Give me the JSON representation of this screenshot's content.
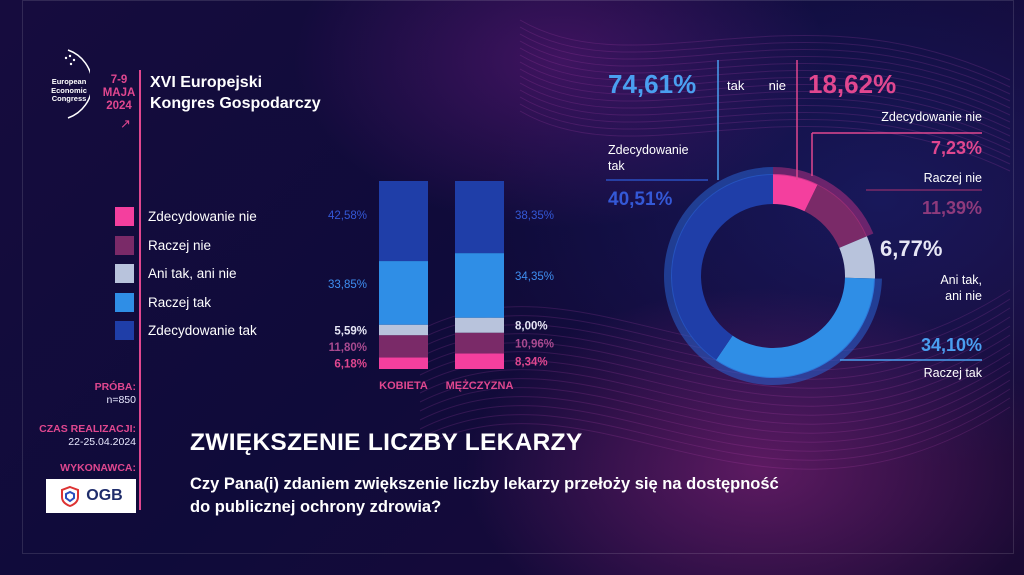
{
  "colors": {
    "zdec_nie": "#f43f9e",
    "raczej_nie": "#7a2a68",
    "ani": "#b8c3dc",
    "raczej_tak": "#2f8ee6",
    "zdec_tak": "#1f3ea8",
    "pink": "#e0478f",
    "blue_light": "#4a9ff0",
    "blue_dark": "#2a4fc0"
  },
  "header": {
    "logo_text": "European Economic Congress",
    "dates": "7-9 MAJA 2024",
    "dates_line1": "7-9",
    "dates_line2": "MAJA",
    "dates_line3": "2024",
    "title_line1": "XVI Europejski",
    "title_line2": "Kongres Gospodarczy"
  },
  "legend": [
    {
      "label": "Zdecydowanie nie",
      "color_key": "zdec_nie"
    },
    {
      "label": "Raczej nie",
      "color_key": "raczej_nie"
    },
    {
      "label": "Ani tak, ani nie",
      "color_key": "ani"
    },
    {
      "label": "Raczej tak",
      "color_key": "raczej_tak"
    },
    {
      "label": "Zdecydowanie tak",
      "color_key": "zdec_tak"
    }
  ],
  "sidebar": {
    "proba_label": "PRÓBA:",
    "proba_value": "n=850",
    "czas_label": "CZAS REALIZACJI:",
    "czas_value": "22-25.04.2024",
    "wykonawca_label": "WYKONAWCA:",
    "logo_text": "OGB"
  },
  "footer": {
    "title": "ZWIĘKSZENIE LICZBY LEKARZY",
    "question_line1": "Czy Pana(i) zdaniem zwiększenie liczby lekarzy przełoży się na dostępność",
    "question_line2": "do publicznej ochrony zdrowia?"
  },
  "chart_data": [
    {
      "type": "bar",
      "stacked": true,
      "categories": [
        "KOBIETA",
        "MĘŻCZYZNA"
      ],
      "series": [
        {
          "name": "Zdecydowanie nie",
          "values": [
            6.18,
            8.34
          ],
          "labels": [
            "6,18%",
            "8,34%"
          ]
        },
        {
          "name": "Raczej nie",
          "values": [
            11.8,
            10.96
          ],
          "labels": [
            "11,80%",
            "10,96%"
          ]
        },
        {
          "name": "Ani tak, ani nie",
          "values": [
            5.59,
            8.0
          ],
          "labels": [
            "5,59%",
            "8,00%"
          ]
        },
        {
          "name": "Raczej tak",
          "values": [
            33.85,
            34.35
          ],
          "labels": [
            "33,85%",
            "34,35%"
          ]
        },
        {
          "name": "Zdecydowanie tak",
          "values": [
            42.58,
            38.35
          ],
          "labels": [
            "42,58%",
            "38,35%"
          ]
        }
      ]
    },
    {
      "type": "pie",
      "donut": true,
      "slices": [
        {
          "name": "Zdecydowanie nie",
          "value": 7.23,
          "label": "7,23%"
        },
        {
          "name": "Raczej nie",
          "value": 11.39,
          "label": "11,39%"
        },
        {
          "name": "Ani tak, ani nie",
          "value": 6.77,
          "label": "6,77%"
        },
        {
          "name": "Raczej tak",
          "value": 34.1,
          "label": "34,10%"
        },
        {
          "name": "Zdecydowanie tak",
          "value": 40.51,
          "label": "40,51%"
        }
      ],
      "slice_labels": {
        "zdec_nie": "Zdecydowanie nie",
        "raczej_nie": "Raczej nie",
        "ani_line1": "Ani tak,",
        "ani_line2": "ani nie",
        "raczej_tak": "Raczej tak",
        "zdec_tak_line1": "Zdecydowanie",
        "zdec_tak_line2": "tak"
      },
      "totals": {
        "tak_label": "tak",
        "tak_value": 74.61,
        "tak_text": "74,61%",
        "nie_label": "nie",
        "nie_value": 18.62,
        "nie_text": "18,62%"
      }
    }
  ]
}
